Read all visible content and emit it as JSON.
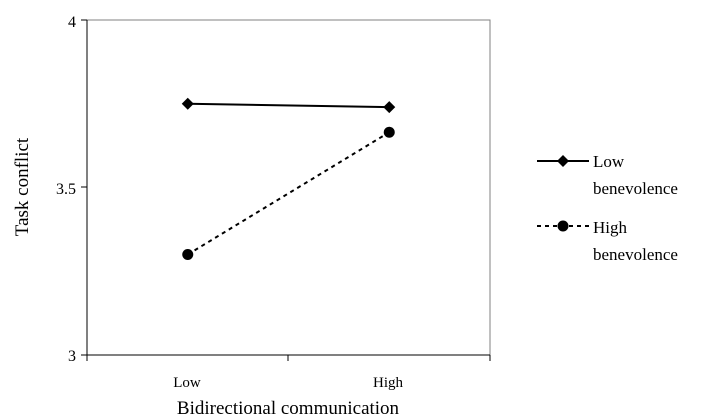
{
  "chart_data": {
    "type": "line",
    "title": "",
    "xlabel": "Bidirectional communication",
    "ylabel": "Task conflict",
    "categories": [
      "Low",
      "High"
    ],
    "ylim": [
      3,
      4
    ],
    "yticks": [
      "3",
      "3.5",
      "4"
    ],
    "grid": false,
    "legend_position": "right",
    "series": [
      {
        "name_lines": [
          "Low",
          "benevolence"
        ],
        "values": [
          3.75,
          3.74
        ],
        "marker": "diamond",
        "line_style": "solid",
        "color": "#000000"
      },
      {
        "name_lines": [
          "High",
          "benevolence"
        ],
        "values": [
          3.3,
          3.665
        ],
        "marker": "circle",
        "line_style": "dashed",
        "color": "#000000"
      }
    ]
  }
}
